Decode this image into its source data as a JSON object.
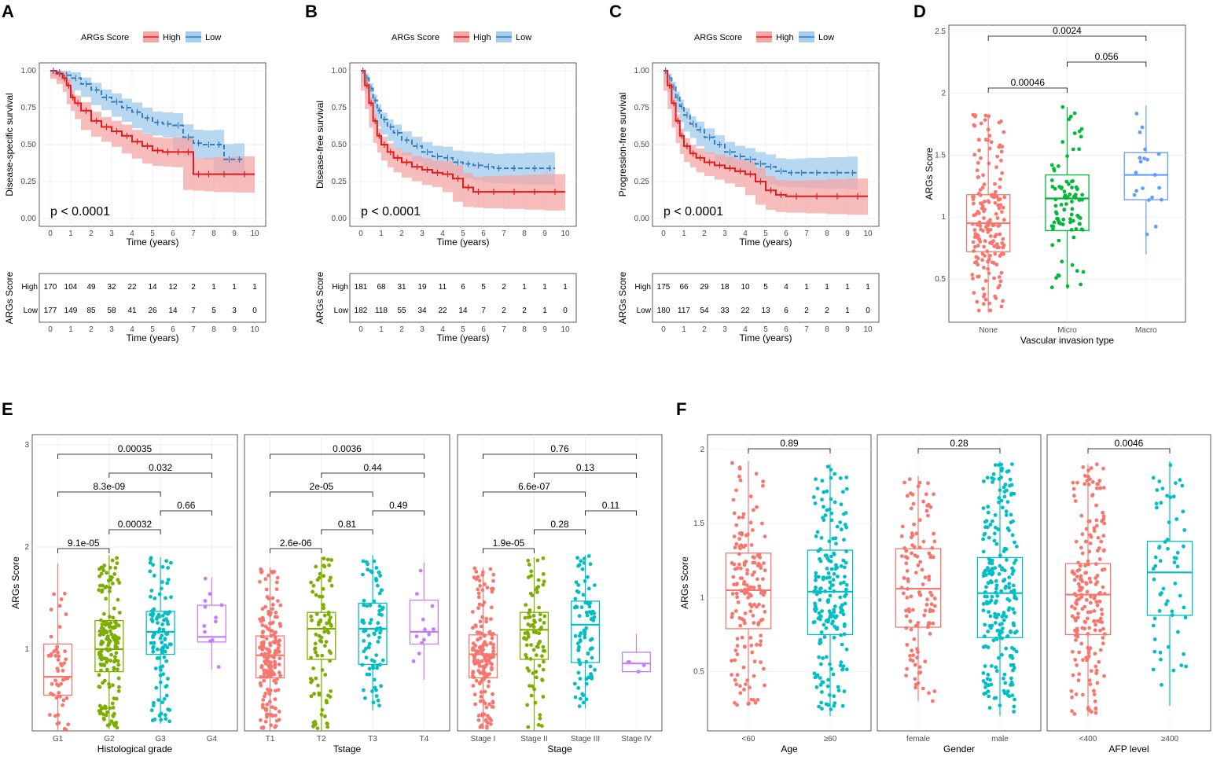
{
  "panel_labels": [
    "A",
    "B",
    "C",
    "D",
    "E",
    "F"
  ],
  "legend": {
    "title": "ARGs Score",
    "high": "High",
    "low": "Low"
  },
  "colors": {
    "high": "#e41a1c",
    "low": "#377eb8",
    "high_fill": "#f4a6a6",
    "low_fill": "#a6cdee",
    "red": "#f8766d",
    "green": "#7cae00",
    "teal": "#00bfc4",
    "purple": "#c77cff",
    "d_none": "#f8766d",
    "d_micro": "#00ba38",
    "d_macro": "#619cff"
  },
  "chart_data": [
    {
      "id": "A",
      "type": "line",
      "title": "",
      "ylabel": "Disease-specific survival",
      "xlabel": "Time (years)",
      "pvalue": "p < 0.0001",
      "x_ticks": [
        0,
        1,
        2,
        3,
        4,
        5,
        6,
        7,
        8,
        9,
        10
      ],
      "y_ticks": [
        "0.00",
        "0.25",
        "0.50",
        "0.75",
        "1.00"
      ],
      "xlim": [
        0,
        10
      ],
      "ylim": [
        0,
        1
      ],
      "series": [
        {
          "name": "High",
          "x": [
            0,
            0.3,
            0.6,
            0.8,
            1,
            1.2,
            1.5,
            2,
            2.5,
            3,
            3.5,
            4,
            4.5,
            5,
            5.5,
            6,
            6.5,
            7,
            7.5,
            8,
            9,
            10
          ],
          "y": [
            1,
            0.98,
            0.95,
            0.9,
            0.82,
            0.78,
            0.73,
            0.66,
            0.62,
            0.59,
            0.56,
            0.52,
            0.49,
            0.46,
            0.45,
            0.45,
            0.45,
            0.3,
            0.3,
            0.3,
            0.3,
            0.3
          ]
        },
        {
          "name": "Low",
          "x": [
            0,
            0.3,
            0.6,
            1,
            1.5,
            2,
            2.5,
            3,
            3.5,
            4,
            4.5,
            5,
            5.5,
            6,
            6.5,
            7,
            7.5,
            8,
            8.5,
            9,
            9.5
          ],
          "y": [
            1,
            0.99,
            0.97,
            0.95,
            0.91,
            0.87,
            0.82,
            0.79,
            0.75,
            0.72,
            0.68,
            0.65,
            0.64,
            0.63,
            0.55,
            0.51,
            0.5,
            0.5,
            0.4,
            0.4,
            0.4
          ]
        }
      ],
      "risk_table": {
        "title": "ARGs Score",
        "xlabel": "Time (years)",
        "High": [
          "170",
          "104",
          "49",
          "32",
          "22",
          "14",
          "12",
          "2",
          "1",
          "1",
          "1"
        ],
        "Low": [
          "177",
          "149",
          "85",
          "58",
          "41",
          "26",
          "14",
          "7",
          "5",
          "3",
          "0"
        ]
      }
    },
    {
      "id": "B",
      "type": "line",
      "title": "",
      "ylabel": "Disease-free survival",
      "xlabel": "Time (years)",
      "pvalue": "p < 0.0001",
      "x_ticks": [
        0,
        1,
        2,
        3,
        4,
        5,
        6,
        7,
        8,
        9,
        10
      ],
      "y_ticks": [
        "0.00",
        "0.25",
        "0.50",
        "0.75",
        "1.00"
      ],
      "xlim": [
        0,
        10
      ],
      "ylim": [
        0,
        1
      ],
      "series": [
        {
          "name": "High",
          "x": [
            0,
            0.2,
            0.4,
            0.6,
            0.8,
            1,
            1.3,
            1.6,
            2,
            2.5,
            3,
            3.5,
            4,
            4.5,
            5,
            5.5,
            6,
            7,
            8,
            9,
            10
          ],
          "y": [
            1,
            0.9,
            0.78,
            0.66,
            0.56,
            0.5,
            0.45,
            0.41,
            0.38,
            0.35,
            0.33,
            0.31,
            0.3,
            0.27,
            0.21,
            0.18,
            0.18,
            0.18,
            0.18,
            0.18,
            0.18
          ]
        },
        {
          "name": "Low",
          "x": [
            0,
            0.2,
            0.4,
            0.6,
            0.8,
            1,
            1.3,
            1.6,
            2,
            2.5,
            3,
            3.5,
            4,
            4.5,
            5,
            5.5,
            6,
            6.5,
            7,
            8,
            9,
            9.5
          ],
          "y": [
            1,
            0.95,
            0.88,
            0.8,
            0.73,
            0.67,
            0.62,
            0.58,
            0.53,
            0.49,
            0.45,
            0.42,
            0.41,
            0.38,
            0.37,
            0.36,
            0.35,
            0.34,
            0.34,
            0.34,
            0.34,
            0.34
          ]
        }
      ],
      "risk_table": {
        "title": "ARGs Score",
        "xlabel": "Time (years)",
        "High": [
          "181",
          "68",
          "31",
          "19",
          "11",
          "6",
          "5",
          "2",
          "1",
          "1",
          "1"
        ],
        "Low": [
          "182",
          "118",
          "55",
          "34",
          "22",
          "14",
          "7",
          "2",
          "2",
          "1",
          "0"
        ]
      }
    },
    {
      "id": "C",
      "type": "line",
      "title": "",
      "ylabel": "Progression-free survival",
      "xlabel": "Time (years)",
      "pvalue": "p < 0.0001",
      "x_ticks": [
        0,
        1,
        2,
        3,
        4,
        5,
        6,
        7,
        8,
        9,
        10
      ],
      "y_ticks": [
        "0.00",
        "0.25",
        "0.50",
        "0.75",
        "1.00"
      ],
      "xlim": [
        0,
        10
      ],
      "ylim": [
        0,
        1
      ],
      "series": [
        {
          "name": "High",
          "x": [
            0,
            0.2,
            0.4,
            0.6,
            0.8,
            1,
            1.3,
            1.6,
            2,
            2.5,
            3,
            3.5,
            4,
            4.5,
            5,
            5.5,
            6,
            7,
            8,
            9,
            10
          ],
          "y": [
            1,
            0.9,
            0.78,
            0.66,
            0.56,
            0.49,
            0.44,
            0.41,
            0.38,
            0.36,
            0.34,
            0.32,
            0.3,
            0.25,
            0.19,
            0.16,
            0.15,
            0.15,
            0.15,
            0.15,
            0.15
          ]
        },
        {
          "name": "Low",
          "x": [
            0,
            0.2,
            0.4,
            0.6,
            0.8,
            1,
            1.3,
            1.6,
            2,
            2.5,
            3,
            3.5,
            4,
            4.5,
            5,
            5.5,
            6,
            6.5,
            7,
            8,
            9,
            9.5
          ],
          "y": [
            1,
            0.95,
            0.89,
            0.82,
            0.76,
            0.7,
            0.64,
            0.6,
            0.55,
            0.5,
            0.45,
            0.42,
            0.4,
            0.37,
            0.35,
            0.32,
            0.31,
            0.31,
            0.31,
            0.31,
            0.31,
            0.31
          ]
        }
      ],
      "risk_table": {
        "title": "ARGs Score",
        "xlabel": "Time (years)",
        "High": [
          "175",
          "66",
          "29",
          "18",
          "10",
          "5",
          "4",
          "1",
          "1",
          "1",
          "1"
        ],
        "Low": [
          "180",
          "117",
          "54",
          "33",
          "22",
          "13",
          "6",
          "2",
          "2",
          "1",
          "0"
        ]
      }
    },
    {
      "id": "D",
      "type": "box",
      "ylabel": "ARGs Score",
      "xlabel": "Vascular invasion type",
      "ylim": [
        0.15,
        2.55
      ],
      "y_ticks": [
        0.5,
        1.0,
        1.5,
        2.0,
        2.5
      ],
      "groups": [
        {
          "name": "None",
          "q1": 0.72,
          "median": 0.95,
          "q3": 1.18,
          "min": 0.23,
          "max": 1.83,
          "n": 180
        },
        {
          "name": "Micro",
          "q1": 0.89,
          "median": 1.15,
          "q3": 1.34,
          "min": 0.42,
          "max": 1.89,
          "n": 90
        },
        {
          "name": "Macro",
          "q1": 1.14,
          "median": 1.34,
          "q3": 1.52,
          "min": 0.7,
          "max": 1.9,
          "n": 20
        }
      ],
      "comparisons": [
        {
          "a": 0,
          "b": 1,
          "label": "0.00046"
        },
        {
          "a": 0,
          "b": 2,
          "label": "0.0024"
        },
        {
          "a": 1,
          "b": 2,
          "label": "0.056"
        }
      ]
    },
    {
      "id": "E1",
      "type": "box",
      "ylabel": "ARGs Score",
      "xlabel": "Histological grade",
      "ylim": [
        0.2,
        3.1
      ],
      "y_ticks": [
        1,
        2,
        3
      ],
      "groups": [
        {
          "name": "G1",
          "q1": 0.55,
          "median": 0.73,
          "q3": 1.05,
          "min": 0.2,
          "max": 1.84,
          "n": 50
        },
        {
          "name": "G2",
          "q1": 0.78,
          "median": 1.0,
          "q3": 1.28,
          "min": 0.22,
          "max": 1.92,
          "n": 170
        },
        {
          "name": "G3",
          "q1": 0.95,
          "median": 1.17,
          "q3": 1.37,
          "min": 0.27,
          "max": 1.9,
          "n": 110
        },
        {
          "name": "G4",
          "q1": 1.07,
          "median": 1.12,
          "q3": 1.43,
          "min": 0.8,
          "max": 1.7,
          "n": 12
        }
      ],
      "comparisons": [
        {
          "a": 0,
          "b": 1,
          "label": "9.1e-05"
        },
        {
          "a": 0,
          "b": 2,
          "label": "8.3e-09"
        },
        {
          "a": 0,
          "b": 3,
          "label": "0.00035"
        },
        {
          "a": 1,
          "b": 2,
          "label": "0.00032"
        },
        {
          "a": 1,
          "b": 3,
          "label": "0.032"
        },
        {
          "a": 2,
          "b": 3,
          "label": "0.66"
        }
      ]
    },
    {
      "id": "E2",
      "type": "box",
      "ylabel": "",
      "xlabel": "Tstage",
      "ylim": [
        0.2,
        3.1
      ],
      "y_ticks": [],
      "groups": [
        {
          "name": "T1",
          "q1": 0.72,
          "median": 0.94,
          "q3": 1.13,
          "min": 0.2,
          "max": 1.8,
          "n": 170
        },
        {
          "name": "T2",
          "q1": 0.9,
          "median": 1.2,
          "q3": 1.36,
          "min": 0.2,
          "max": 1.9,
          "n": 90
        },
        {
          "name": "T3",
          "q1": 0.85,
          "median": 1.2,
          "q3": 1.45,
          "min": 0.4,
          "max": 1.92,
          "n": 80
        },
        {
          "name": "T4",
          "q1": 1.05,
          "median": 1.17,
          "q3": 1.48,
          "min": 0.7,
          "max": 1.85,
          "n": 12
        }
      ],
      "comparisons": [
        {
          "a": 0,
          "b": 1,
          "label": "2.6e-06"
        },
        {
          "a": 0,
          "b": 2,
          "label": "2e-05"
        },
        {
          "a": 0,
          "b": 3,
          "label": "0.0036"
        },
        {
          "a": 1,
          "b": 2,
          "label": "0.81"
        },
        {
          "a": 1,
          "b": 3,
          "label": "0.44"
        },
        {
          "a": 2,
          "b": 3,
          "label": "0.49"
        }
      ]
    },
    {
      "id": "E3",
      "type": "box",
      "ylabel": "",
      "xlabel": "Stage",
      "ylim": [
        0.2,
        3.1
      ],
      "y_ticks": [],
      "groups": [
        {
          "name": "Stage I",
          "q1": 0.72,
          "median": 0.95,
          "q3": 1.14,
          "min": 0.22,
          "max": 1.8,
          "n": 170
        },
        {
          "name": "Stage II",
          "q1": 0.9,
          "median": 1.19,
          "q3": 1.36,
          "min": 0.2,
          "max": 1.9,
          "n": 85
        },
        {
          "name": "Stage III",
          "q1": 0.87,
          "median": 1.24,
          "q3": 1.47,
          "min": 0.42,
          "max": 1.92,
          "n": 85
        },
        {
          "name": "Stage IV",
          "q1": 0.78,
          "median": 0.86,
          "q3": 0.97,
          "min": 0.78,
          "max": 1.15,
          "n": 4
        }
      ],
      "comparisons": [
        {
          "a": 0,
          "b": 1,
          "label": "1.9e-05"
        },
        {
          "a": 0,
          "b": 2,
          "label": "6.6e-07"
        },
        {
          "a": 0,
          "b": 3,
          "label": "0.76"
        },
        {
          "a": 1,
          "b": 2,
          "label": "0.28"
        },
        {
          "a": 1,
          "b": 3,
          "label": "0.13"
        },
        {
          "a": 2,
          "b": 3,
          "label": "0.11"
        }
      ]
    },
    {
      "id": "F1",
      "type": "box",
      "ylabel": "ARGs Score",
      "xlabel": "Age",
      "ylim": [
        0.1,
        2.1
      ],
      "y_ticks": [
        0.5,
        1.0,
        1.5,
        2.0
      ],
      "groups": [
        {
          "name": "<60",
          "q1": 0.79,
          "median": 1.05,
          "q3": 1.3,
          "min": 0.27,
          "max": 1.92,
          "n": 160
        },
        {
          "name": "≥60",
          "q1": 0.75,
          "median": 1.04,
          "q3": 1.32,
          "min": 0.2,
          "max": 1.9,
          "n": 200
        }
      ],
      "comparisons": [
        {
          "a": 0,
          "b": 1,
          "label": "0.89"
        }
      ]
    },
    {
      "id": "F2",
      "type": "box",
      "ylabel": "",
      "xlabel": "Gender",
      "ylim": [
        0.1,
        2.1
      ],
      "y_ticks": [],
      "groups": [
        {
          "name": "female",
          "q1": 0.8,
          "median": 1.06,
          "q3": 1.33,
          "min": 0.3,
          "max": 1.82,
          "n": 120
        },
        {
          "name": "male",
          "q1": 0.73,
          "median": 1.03,
          "q3": 1.27,
          "min": 0.2,
          "max": 1.92,
          "n": 240
        }
      ],
      "comparisons": [
        {
          "a": 0,
          "b": 1,
          "label": "0.28"
        }
      ]
    },
    {
      "id": "F3",
      "type": "box",
      "ylabel": "",
      "xlabel": "AFP level",
      "ylim": [
        0.1,
        2.1
      ],
      "y_ticks": [],
      "groups": [
        {
          "name": "<400",
          "q1": 0.75,
          "median": 1.02,
          "q3": 1.23,
          "min": 0.2,
          "max": 1.9,
          "n": 200
        },
        {
          "name": "≥400",
          "q1": 0.88,
          "median": 1.17,
          "q3": 1.38,
          "min": 0.27,
          "max": 1.92,
          "n": 60
        }
      ],
      "comparisons": [
        {
          "a": 0,
          "b": 1,
          "label": "0.0046"
        }
      ]
    }
  ]
}
